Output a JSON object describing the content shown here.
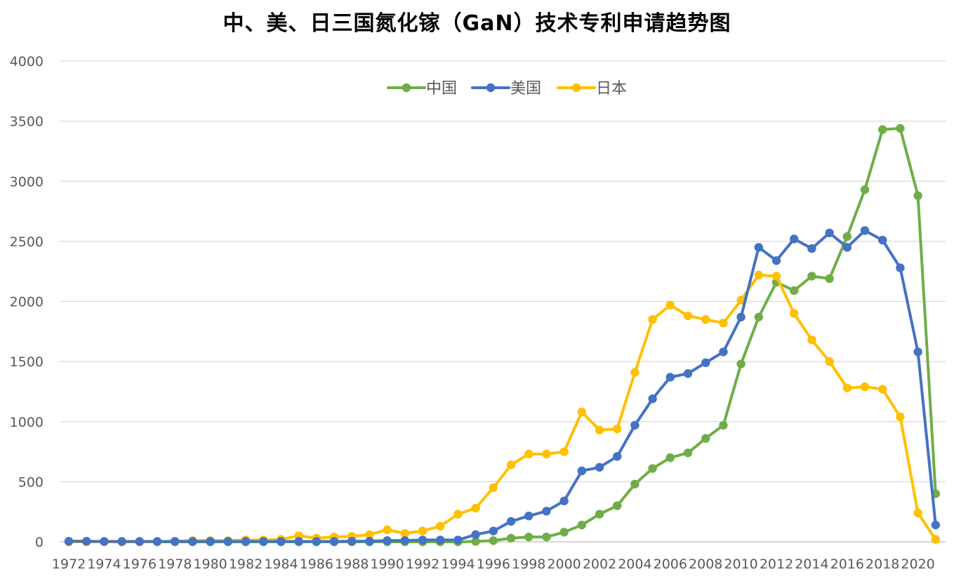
{
  "chart_data": {
    "type": "line",
    "title": "中、美、日三国氮化镓（GaN）技术专利申请趋势图",
    "ylim": [
      0,
      4000
    ],
    "yticks": [
      0,
      500,
      1000,
      1500,
      2000,
      2500,
      3000,
      3500,
      4000
    ],
    "xtick_labels": [
      "1972",
      "1974",
      "1976",
      "1978",
      "1980",
      "1982",
      "1984",
      "1986",
      "1988",
      "1990",
      "1992",
      "1994",
      "1996",
      "1998",
      "2000",
      "2002",
      "2004",
      "2006",
      "2008",
      "2010",
      "2012",
      "2014",
      "2016",
      "2018",
      "2020"
    ],
    "grid": true,
    "legend_position": "top-center",
    "x": [
      1972,
      1973,
      1974,
      1975,
      1976,
      1977,
      1978,
      1979,
      1980,
      1981,
      1982,
      1983,
      1984,
      1985,
      1986,
      1987,
      1988,
      1989,
      1990,
      1991,
      1992,
      1993,
      1994,
      1995,
      1996,
      1997,
      1998,
      1999,
      2000,
      2001,
      2002,
      2003,
      2004,
      2005,
      2006,
      2007,
      2008,
      2009,
      2010,
      2011,
      2012,
      2013,
      2014,
      2015,
      2016,
      2017,
      2018,
      2019,
      2020,
      2021
    ],
    "series": [
      {
        "name": "中国",
        "color": "#70AD47",
        "values": [
          0,
          0,
          0,
          0,
          0,
          0,
          0,
          0,
          0,
          0,
          0,
          0,
          0,
          0,
          0,
          0,
          0,
          0,
          0,
          0,
          0,
          0,
          0,
          3,
          10,
          30,
          40,
          40,
          80,
          140,
          230,
          300,
          480,
          610,
          700,
          740,
          860,
          970,
          1480,
          1870,
          2160,
          2090,
          2210,
          2190,
          2540,
          2930,
          3430,
          3440,
          2880,
          400
        ]
      },
      {
        "name": "美国",
        "color": "#4472C4",
        "values": [
          5,
          5,
          3,
          3,
          3,
          3,
          3,
          3,
          3,
          3,
          3,
          3,
          3,
          3,
          3,
          3,
          5,
          5,
          10,
          10,
          15,
          15,
          15,
          60,
          90,
          170,
          215,
          255,
          340,
          590,
          620,
          710,
          970,
          1190,
          1370,
          1400,
          1490,
          1580,
          1870,
          2450,
          2340,
          2520,
          2440,
          2570,
          2450,
          2590,
          2510,
          2280,
          1580,
          140
        ]
      },
      {
        "name": "日本",
        "color": "#FFC000",
        "values": [
          0,
          0,
          0,
          0,
          0,
          0,
          5,
          10,
          10,
          10,
          15,
          15,
          20,
          50,
          30,
          40,
          45,
          60,
          100,
          70,
          90,
          130,
          230,
          280,
          450,
          640,
          730,
          730,
          750,
          1080,
          930,
          940,
          1410,
          1850,
          1970,
          1880,
          1850,
          1820,
          2010,
          2220,
          2210,
          1900,
          1680,
          1500,
          1280,
          1290,
          1270,
          1040,
          240,
          20
        ]
      }
    ]
  }
}
